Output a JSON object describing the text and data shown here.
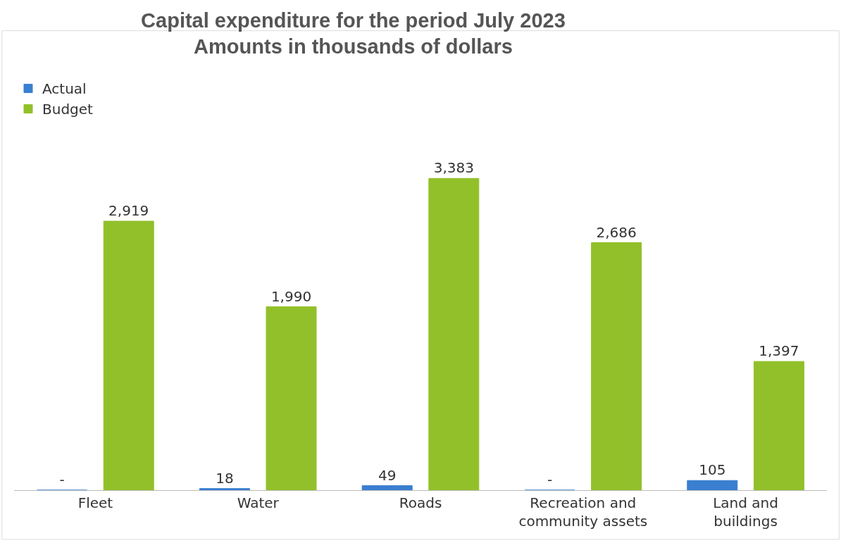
{
  "chart_data": {
    "type": "bar",
    "title": "Capital expenditure for the period July 2023",
    "subtitle": "Amounts in thousands of dollars",
    "categories": [
      "Fleet",
      "Water",
      "Roads",
      "Recreation and community assets",
      "Land and buildings"
    ],
    "series": [
      {
        "name": "Actual",
        "color": "#3a7fd0",
        "values": [
          0,
          18,
          49,
          0,
          105
        ],
        "value_labels": [
          "-",
          "18",
          "49",
          "-",
          "105"
        ]
      },
      {
        "name": "Budget",
        "color": "#92c02a",
        "values": [
          2919,
          1990,
          3383,
          2686,
          1397
        ],
        "value_labels": [
          "2,919",
          "1,990",
          "3,383",
          "2,686",
          "1,397"
        ]
      }
    ],
    "legend": "top left",
    "grid": false
  }
}
